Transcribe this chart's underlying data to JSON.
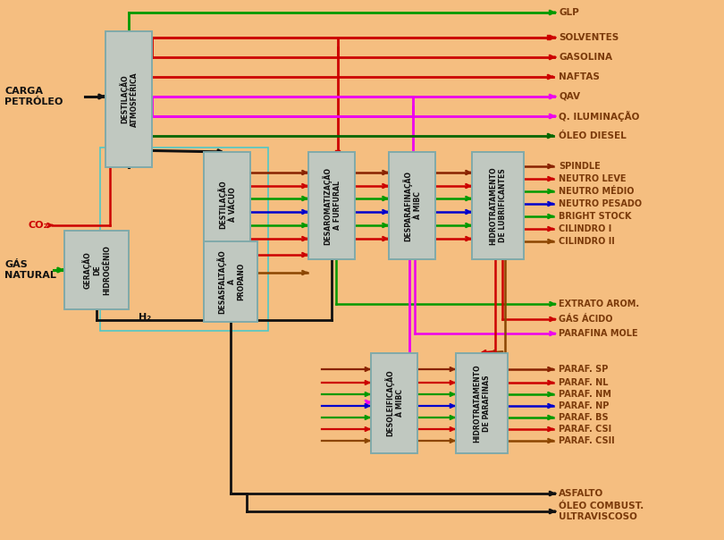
{
  "bg": "#F5BE80",
  "bc": "#C0C8C0",
  "be": "#80AAAA",
  "lc": "#7B3A0A",
  "boxes": {
    "DA": [
      118,
      35,
      52,
      152
    ],
    "DV": [
      228,
      170,
      52,
      118
    ],
    "GH": [
      72,
      258,
      72,
      88
    ],
    "DAP": [
      228,
      270,
      60,
      90
    ],
    "DF": [
      345,
      170,
      52,
      120
    ],
    "DM": [
      435,
      170,
      52,
      120
    ],
    "HL": [
      528,
      170,
      58,
      120
    ],
    "DM2": [
      415,
      395,
      52,
      112
    ],
    "HP": [
      510,
      395,
      58,
      112
    ]
  },
  "box_labels": {
    "DA": "DESTILAÇÃO\nATMOSFÉRICA",
    "DV": "DESTILAÇÃO\nÀ VÁCUO",
    "GH": "GERAÇÃO\nDE\nHIDROGÊNIO",
    "DAP": "DESASFALTAÇÃO\nA\nPROPANO",
    "DF": "DESAROMATIZAÇÃO\nA FURFURAL",
    "DM": "DESPARAFINAÇÃO\nÀ MIBC",
    "HL": "HIDROTRATAMENTO\nDE LUBRIFICANTES",
    "DM2": "DESOLEIFICAÇÃO\nÀ MIBC",
    "HP": "HIDROTRATAMENTO\nDE PARAFINAS"
  }
}
